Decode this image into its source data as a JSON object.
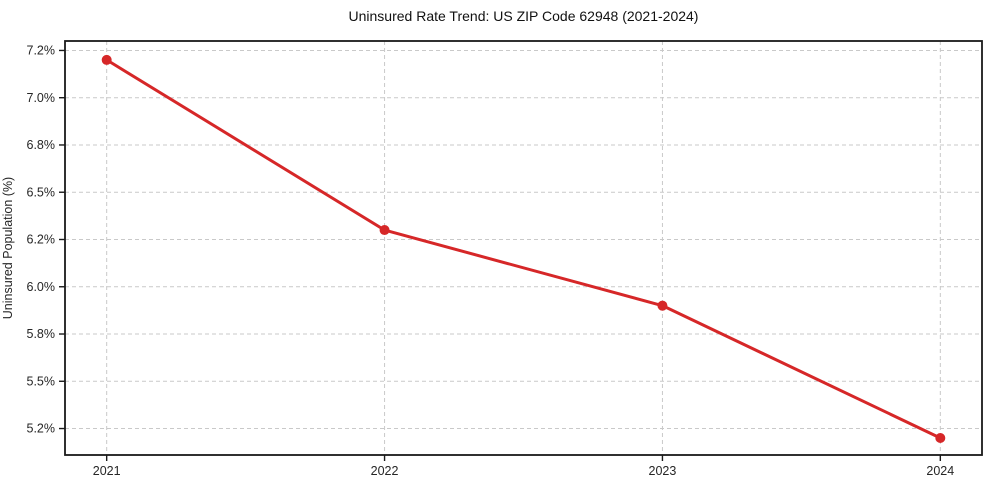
{
  "chart_data": {
    "type": "line",
    "title": "Uninsured Rate Trend: US ZIP Code 62948 (2021-2024)",
    "xlabel": "",
    "ylabel": "Uninsured Population (%)",
    "categories": [
      "2021",
      "2022",
      "2023",
      "2024"
    ],
    "x": [
      2021,
      2022,
      2023,
      2024
    ],
    "series": [
      {
        "name": "Uninsured Population (%)",
        "values": [
          7.2,
          6.3,
          5.9,
          5.2
        ]
      }
    ],
    "y_ticks": [
      {
        "value": 7.25,
        "label": "7.2%"
      },
      {
        "value": 7.0,
        "label": "7.0%"
      },
      {
        "value": 6.75,
        "label": "6.8%"
      },
      {
        "value": 6.5,
        "label": "6.5%"
      },
      {
        "value": 6.25,
        "label": "6.2%"
      },
      {
        "value": 6.0,
        "label": "6.0%"
      },
      {
        "value": 5.75,
        "label": "5.8%"
      },
      {
        "value": 5.5,
        "label": "5.5%"
      },
      {
        "value": 5.25,
        "label": "5.2%"
      }
    ],
    "xlim": [
      2020.85,
      2024.15
    ],
    "ylim": [
      5.11,
      7.3
    ],
    "grid": true,
    "grid_style": "dashed",
    "legend_position": "none",
    "marker": "circle",
    "colors": {
      "line": "#d62728",
      "marker": "#d62728",
      "grid": "#c9c9c9",
      "axis": "#1a1a1a",
      "tick_text": "#262626",
      "title_text": "#111111",
      "background": "#ffffff"
    }
  }
}
